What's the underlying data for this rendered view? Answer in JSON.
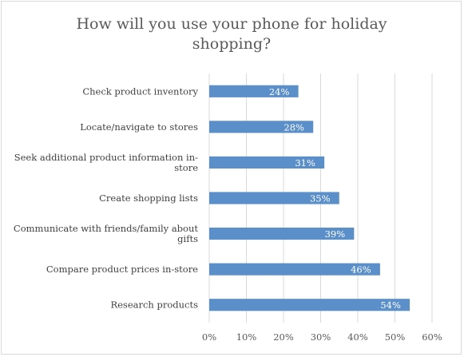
{
  "chart_data": {
    "type": "bar",
    "orientation": "horizontal",
    "title": "How will you use your phone for holiday shopping?",
    "categories": [
      "Check product inventory",
      "Locate/navigate to stores",
      "Seek additional product information in-store",
      "Create shopping lists",
      "Communicate with friends/family about gifts",
      "Compare product prices in-store",
      "Research products"
    ],
    "category_display_lines": [
      [
        "Check product inventory"
      ],
      [
        "Locate/navigate to stores"
      ],
      [
        "Seek additional product information in-",
        "store"
      ],
      [
        "Create shopping lists"
      ],
      [
        "Communicate with friends/family about",
        "gifts"
      ],
      [
        "Compare product prices in-store"
      ],
      [
        "Research products"
      ]
    ],
    "values": [
      24,
      28,
      31,
      35,
      39,
      46,
      54
    ],
    "value_labels": [
      "24%",
      "28%",
      "31%",
      "35%",
      "39%",
      "46%",
      "54%"
    ],
    "xlim": [
      0,
      60
    ],
    "x_ticks": [
      0,
      10,
      20,
      30,
      40,
      50,
      60
    ],
    "x_tick_labels": [
      "0%",
      "10%",
      "20%",
      "30%",
      "40%",
      "50%",
      "60%"
    ],
    "grid": true,
    "bar_color": "#5b8fc9",
    "grid_color": "#d9d9d9"
  }
}
